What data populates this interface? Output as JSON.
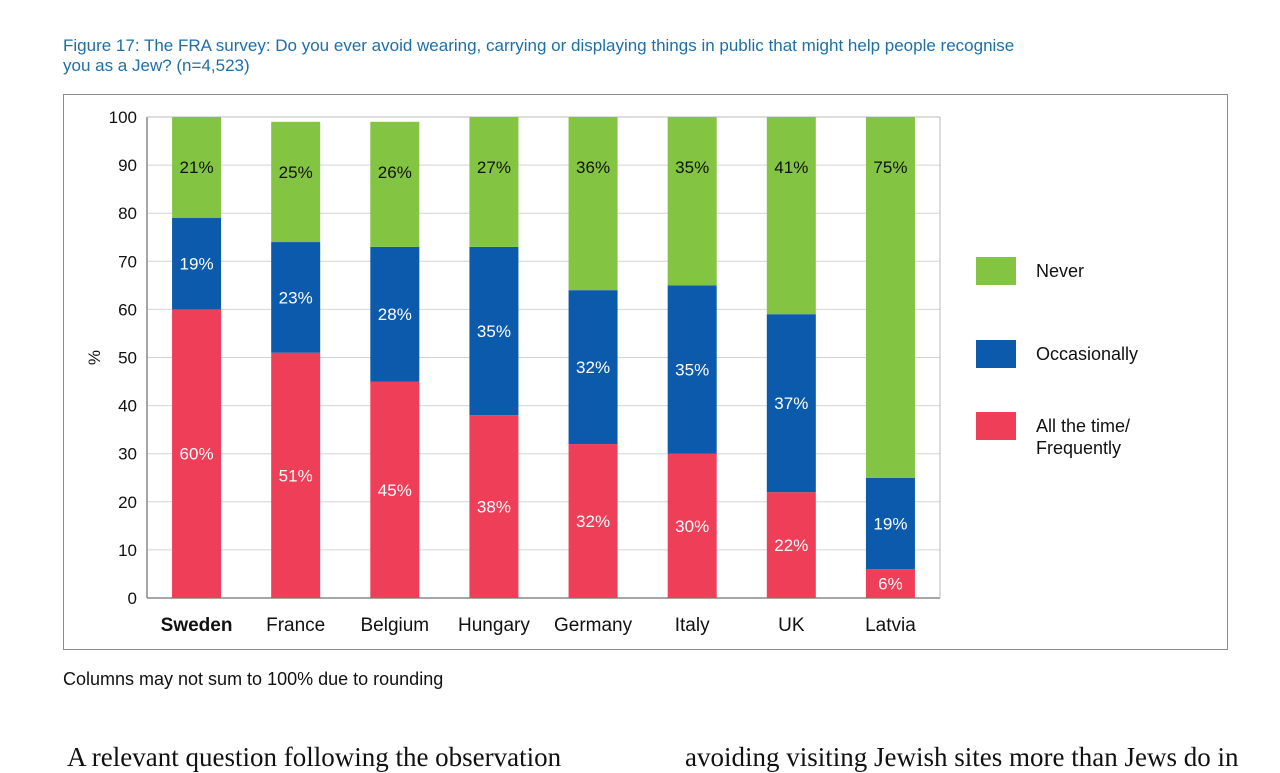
{
  "figure": {
    "title_line1": "Figure 17: The FRA survey: Do you ever avoid wearing, carrying or displaying things in public that might help people recognise",
    "title_line2": "you as a Jew? (n=4,523)",
    "note": "Columns may not sum to 100% due to rounding"
  },
  "chart_data": {
    "type": "bar",
    "stacked": true,
    "title": "The FRA survey: Do you ever avoid wearing, carrying or displaying things in public that might help people recognise you as a Jew? (n=4,523)",
    "xlabel": "",
    "ylabel": "%",
    "ylim": [
      0,
      100
    ],
    "yticks": [
      0,
      10,
      20,
      30,
      40,
      50,
      60,
      70,
      80,
      90,
      100
    ],
    "grid": true,
    "legend_position": "right",
    "categories": [
      "Sweden",
      "France",
      "Belgium",
      "Hungary",
      "Germany",
      "Italy",
      "UK",
      "Latvia"
    ],
    "highlight_category": "Sweden",
    "series": [
      {
        "name": "All the time/ Frequently",
        "legend_lines": [
          "All the time/",
          "Frequently"
        ],
        "color": "#ee3e58",
        "values": [
          60,
          51,
          45,
          38,
          32,
          30,
          22,
          6
        ]
      },
      {
        "name": "Occasionally",
        "legend_lines": [
          "Occasionally"
        ],
        "color": "#0b5aab",
        "values": [
          19,
          23,
          28,
          35,
          32,
          35,
          37,
          19
        ]
      },
      {
        "name": "Never",
        "legend_lines": [
          "Never"
        ],
        "color": "#84c443",
        "values": [
          21,
          25,
          26,
          27,
          36,
          35,
          41,
          75
        ]
      }
    ],
    "legend_order": [
      "Never",
      "Occasionally",
      "All the time/ Frequently"
    ]
  },
  "body_text": {
    "left_column": "A relevant question following the observation",
    "right_column": "avoiding visiting Jewish sites more than Jews do in"
  }
}
